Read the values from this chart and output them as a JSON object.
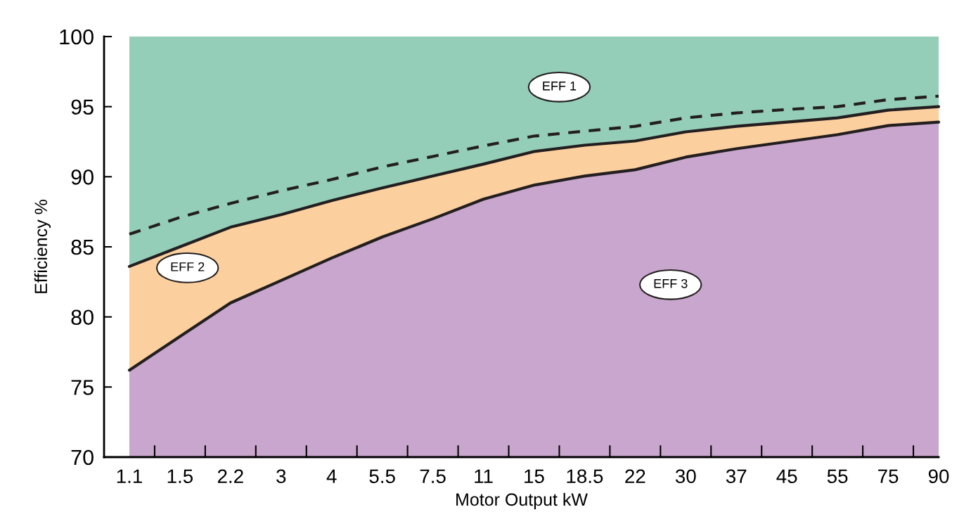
{
  "chart_data": {
    "type": "area",
    "xlabel": "Motor Output kW",
    "ylabel": "Efficiency %",
    "categories": [
      "1.1",
      "1.5",
      "2.2",
      "3",
      "4",
      "5.5",
      "7.5",
      "11",
      "15",
      "18.5",
      "22",
      "30",
      "37",
      "45",
      "55",
      "75",
      "90"
    ],
    "ylim": [
      70,
      100
    ],
    "yticks": [
      70,
      75,
      80,
      85,
      90,
      95,
      100
    ],
    "grid": false,
    "series": [
      {
        "name": "EFF 3",
        "color": "#c9a6cd",
        "values": [
          76.2,
          78.6,
          81.0,
          82.6,
          84.2,
          85.7,
          87.0,
          88.4,
          89.4,
          90.05,
          90.5,
          91.4,
          92.0,
          92.5,
          93.0,
          93.65,
          93.9
        ]
      },
      {
        "name": "EFF 2",
        "color": "#fcd09e",
        "values": [
          83.6,
          85.0,
          86.4,
          87.3,
          88.3,
          89.2,
          90.05,
          90.9,
          91.8,
          92.25,
          92.55,
          93.2,
          93.6,
          93.9,
          94.2,
          94.75,
          95.0
        ]
      },
      {
        "name": "EFF 1",
        "color": "#94cdb8",
        "values": [
          100,
          100,
          100,
          100,
          100,
          100,
          100,
          100,
          100,
          100,
          100,
          100,
          100,
          100,
          100,
          100,
          100
        ]
      },
      {
        "type": "line",
        "color": "#231f20",
        "line_style": "dashed",
        "values": [
          85.9,
          87.1,
          88.1,
          89.0,
          89.8,
          90.7,
          91.45,
          92.2,
          92.9,
          93.25,
          93.6,
          94.2,
          94.55,
          94.8,
          95.0,
          95.5,
          95.75
        ]
      }
    ]
  }
}
